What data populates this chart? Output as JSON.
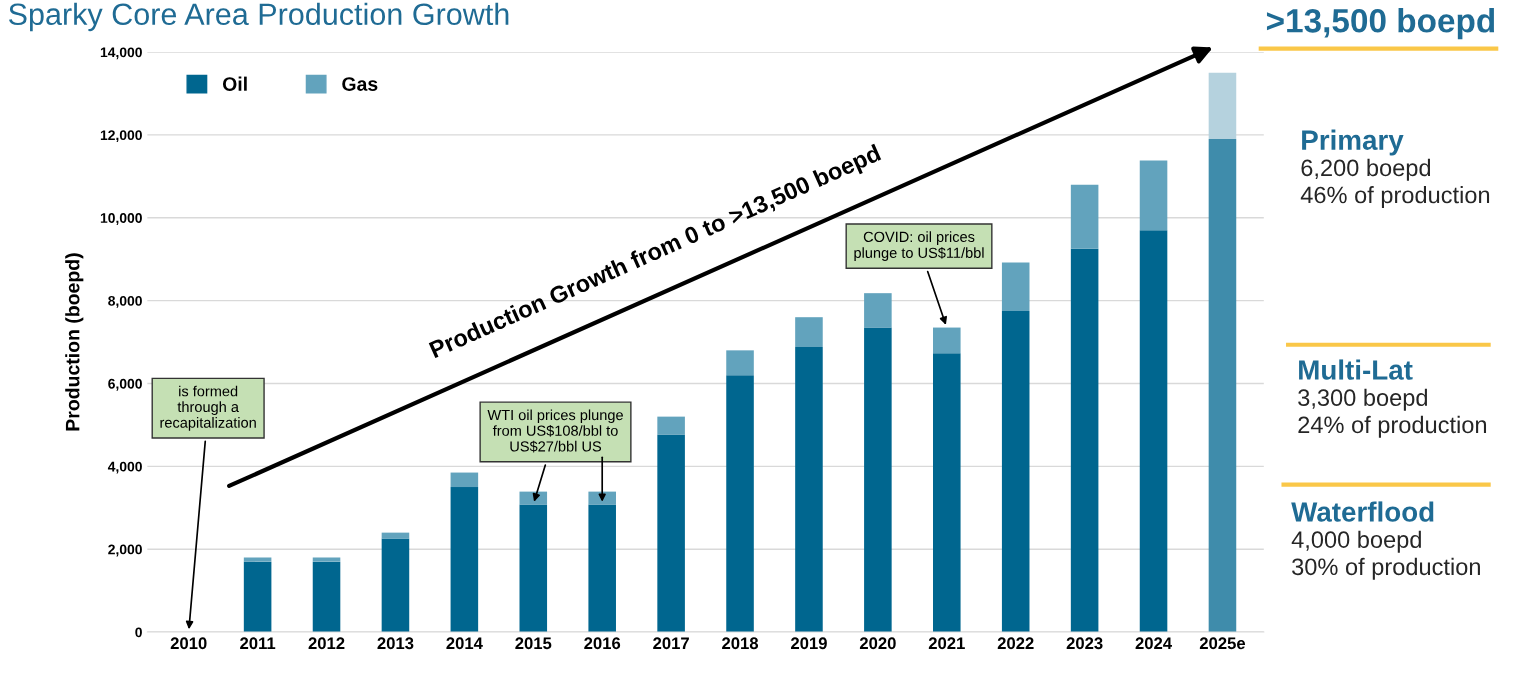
{
  "chart_data": {
    "type": "bar",
    "title": "Sparky Core Area Production Growth",
    "ylabel": "Production (boepd)",
    "categories": [
      "2010",
      "2011",
      "2012",
      "2013",
      "2014",
      "2015",
      "2016",
      "2017",
      "2018",
      "2019",
      "2020",
      "2021",
      "2022",
      "2023",
      "2024",
      "2025e"
    ],
    "stacked": true,
    "series": [
      {
        "name": "Oil",
        "color": "#00668f",
        "colors": [
          "#00668f",
          "#00668f",
          "#00668f",
          "#00668f",
          "#00668f",
          "#00668f",
          "#00668f",
          "#00668f",
          "#00668f",
          "#00668f",
          "#00668f",
          "#00668f",
          "#00668f",
          "#00668f",
          "#00668f",
          "#3f8cab"
        ],
        "values": [
          0,
          1700,
          1700,
          2250,
          3500,
          3080,
          3080,
          4770,
          6200,
          6880,
          7350,
          6730,
          7750,
          9250,
          9700,
          11900
        ]
      },
      {
        "name": "Gas",
        "color": "#62a3bd",
        "colors": [
          "#62a3bd",
          "#62a3bd",
          "#62a3bd",
          "#62a3bd",
          "#62a3bd",
          "#62a3bd",
          "#62a3bd",
          "#62a3bd",
          "#62a3bd",
          "#62a3bd",
          "#62a3bd",
          "#62a3bd",
          "#62a3bd",
          "#62a3bd",
          "#62a3bd",
          "#b5d2de"
        ],
        "values": [
          0,
          100,
          100,
          150,
          350,
          310,
          310,
          430,
          600,
          720,
          830,
          620,
          1170,
          1550,
          1680,
          1600
        ]
      }
    ],
    "ylim": [
      0,
      14000
    ],
    "yticks": [
      0,
      {
        "value": 2000,
        "label": "2,000"
      },
      {
        "value": 4000,
        "label": "4,000"
      },
      {
        "value": 6000,
        "label": "6,000"
      },
      {
        "value": 8000,
        "label": "8,000"
      },
      {
        "value": 10000,
        "label": "10,000"
      },
      {
        "value": 12000,
        "label": "12,000"
      },
      {
        "value": 14000,
        "label": "14,000"
      }
    ],
    "grid": "y",
    "legend": "top left",
    "annotations": [
      {
        "text": "is formed\nthrough a\nrecapitalization",
        "x": "2010",
        "y": 0
      },
      {
        "text": "WTI oil prices plunge\nfrom US$108/bbl to\nUS$27/bbl US",
        "x": "2015",
        "y": 3080
      },
      {
        "text": "COVID: oil prices\nplunge to US$11/bbl",
        "x": "2021",
        "y": 7350
      },
      "Production Growth from 0 to >13,500 boepd",
      ">13,500 boepd",
      "Primary",
      "6,200 boepd\n46% of production",
      "Multi-Lat",
      "3,300 boepd\n24% of production",
      "Waterflood",
      "4,000 boepd\n30% of production"
    ]
  }
}
